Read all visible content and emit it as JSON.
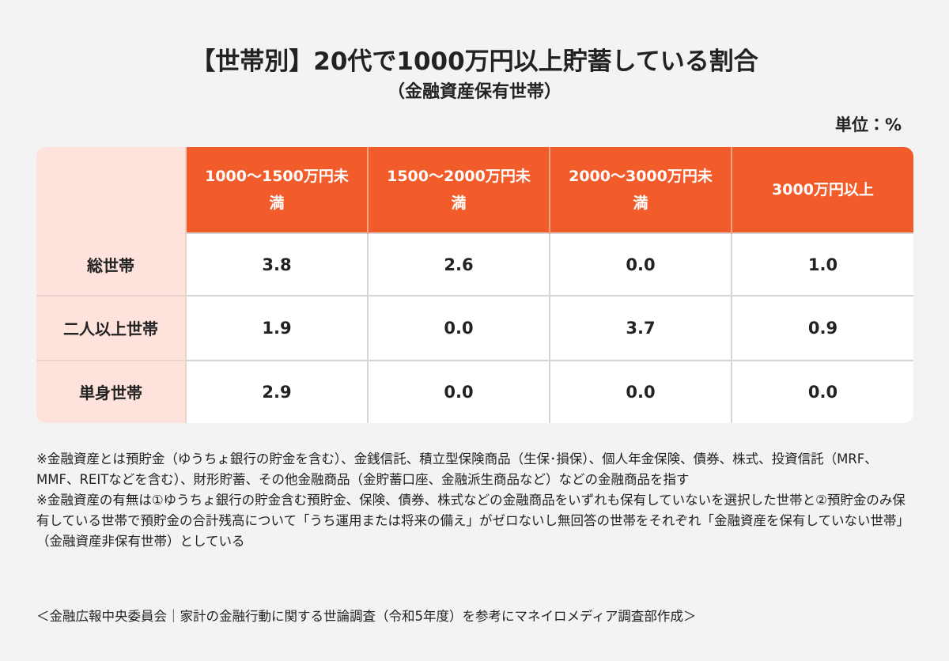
{
  "header": {
    "title": "【世帯別】20代で1000万円以上貯蓄している割合",
    "subtitle": "（金融資産保有世帯）",
    "unit": "単位：%"
  },
  "table": {
    "columns": [
      "1000〜1500万円未満",
      "1500〜2000万円未満",
      "2000〜3000万円未満",
      "3000万円以上"
    ],
    "rows": [
      [
        "総世帯",
        "3.8",
        "2.6",
        "0.0",
        "1.0"
      ],
      [
        "二人以上世帯",
        "1.9",
        "0.0",
        "3.7",
        "0.9"
      ],
      [
        "単身世帯",
        "2.9",
        "0.0",
        "0.0",
        "0.0"
      ]
    ]
  },
  "notes": [
    "※金融資産とは預貯金（ゆうちょ銀行の貯金を含む）、金銭信託、積立型保険商品（生保･損保）、個人年金保険、債券、株式、投資信託（MRF、MMF、REITなどを含む）、財形貯蓄、その他金融商品（金貯蓄口座、金融派生商品など）などの金融商品を指す",
    "※金融資産の有無は①ゆうちょ銀行の貯金含む預貯金、保険、債券、株式などの金融商品をいずれも保有していないを選択した世帯と②預貯金のみ保有している世帯で預貯金の合計残高について「うち運用または将来の備え」がゼロないし無回答の世帯をそれぞれ「金融資産を保有していない世帯」（金融資産非保有世帯）としている"
  ],
  "source": "＜金融広報中央委員会｜家計の金融行動に関する世論調査（令和5年度）を参考にマネイロメディア調査部作成＞"
}
